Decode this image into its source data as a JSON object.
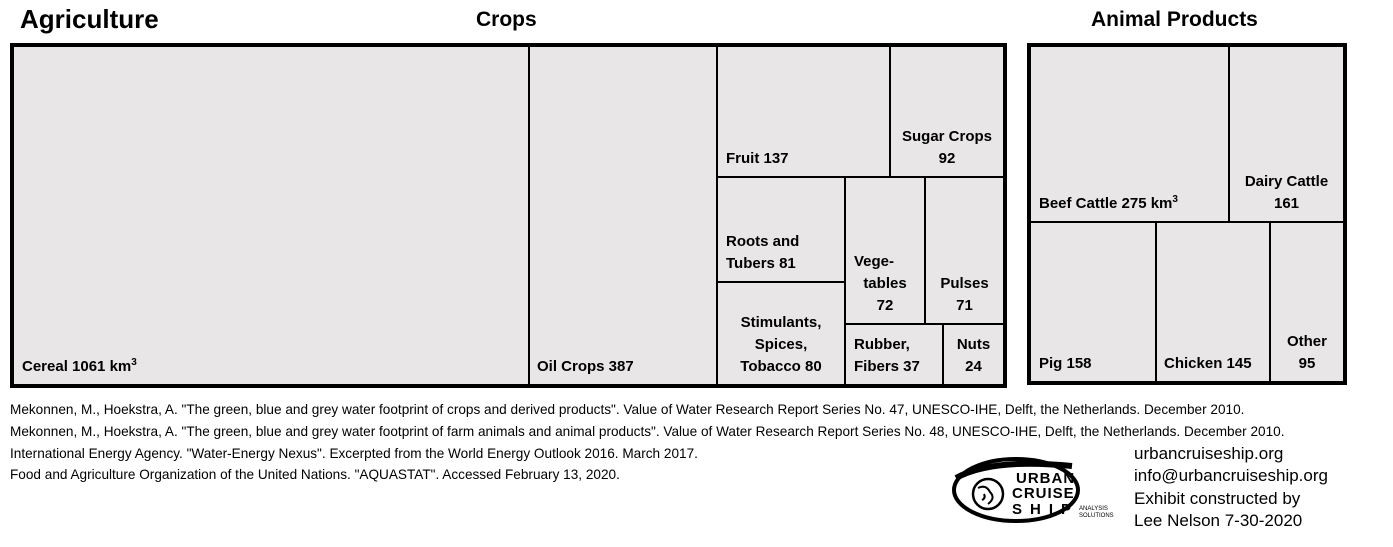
{
  "chart_data": {
    "type": "treemap",
    "title": "Agriculture",
    "unit": "km3",
    "groups": [
      {
        "name": "Crops",
        "items": [
          {
            "label": "Cereal",
            "value": 1061,
            "display": "Cereal 1061 km"
          },
          {
            "label": "Oil Crops",
            "value": 387,
            "display": "Oil Crops 387"
          },
          {
            "label": "Fruit",
            "value": 137,
            "display": "Fruit 137"
          },
          {
            "label": "Sugar Crops",
            "value": 92,
            "display_lines": [
              "Sugar Crops",
              "92"
            ]
          },
          {
            "label": "Roots and Tubers",
            "value": 81,
            "display_lines": [
              "Roots and",
              "Tubers 81"
            ]
          },
          {
            "label": "Vegetables",
            "value": 72,
            "display_lines": [
              "Vege-",
              "tables",
              "72"
            ]
          },
          {
            "label": "Pulses",
            "value": 71,
            "display_lines": [
              "Pulses",
              "71"
            ]
          },
          {
            "label": "Stimulants, Spices, Tobacco",
            "value": 80,
            "display_lines": [
              "Stimulants,",
              "Spices,",
              "Tobacco 80"
            ]
          },
          {
            "label": "Rubber, Fibers",
            "value": 37,
            "display_lines": [
              "Rubber,",
              "Fibers 37"
            ]
          },
          {
            "label": "Nuts",
            "value": 24,
            "display_lines": [
              "Nuts",
              "24"
            ]
          }
        ]
      },
      {
        "name": "Animal Products",
        "items": [
          {
            "label": "Beef Cattle",
            "value": 275,
            "display": "Beef Cattle 275  km"
          },
          {
            "label": "Dairy Cattle",
            "value": 161,
            "display_lines": [
              "Dairy Cattle",
              "161"
            ]
          },
          {
            "label": "Pig",
            "value": 158,
            "display": "Pig 158"
          },
          {
            "label": "Chicken",
            "value": 145,
            "display": "Chicken 145"
          },
          {
            "label": "Other",
            "value": 95,
            "display_lines": [
              "Other",
              "95"
            ]
          }
        ]
      }
    ],
    "superscript": "3"
  },
  "colors": {
    "cell_fill": "#e8e6e6",
    "border": "#000000",
    "logo": "#000000"
  },
  "references": [
    "Mekonnen, M., Hoekstra, A. \"The green, blue and grey water footprint of crops and derived products\". Value of Water Research Report Series No. 47, UNESCO-IHE, Delft, the Netherlands. December 2010.",
    "Mekonnen, M., Hoekstra, A. \"The green, blue and grey water footprint of farm animals and animal products\". Value of Water Research Report Series No. 48, UNESCO-IHE, Delft, the Netherlands. December 2010.",
    "International Energy Agency. \"Water-Energy Nexus\". Excerpted from the World Energy Outlook 2016. March 2017.",
    "Food and Agriculture Organization of the United Nations. \"AQUASTAT\". Accessed February 13, 2020."
  ],
  "credits": {
    "website": "urbancruiseship.org",
    "email": "info@urbancruiseship.org",
    "line3": "Exhibit constructed by",
    "line4": "Lee Nelson 7-30-2020"
  },
  "logo": {
    "word1": "URBAN",
    "word2": "CRUISE",
    "word3": "SHIP",
    "tagline1": "ANALYSIS",
    "tagline2": "SOLUTIONS"
  }
}
